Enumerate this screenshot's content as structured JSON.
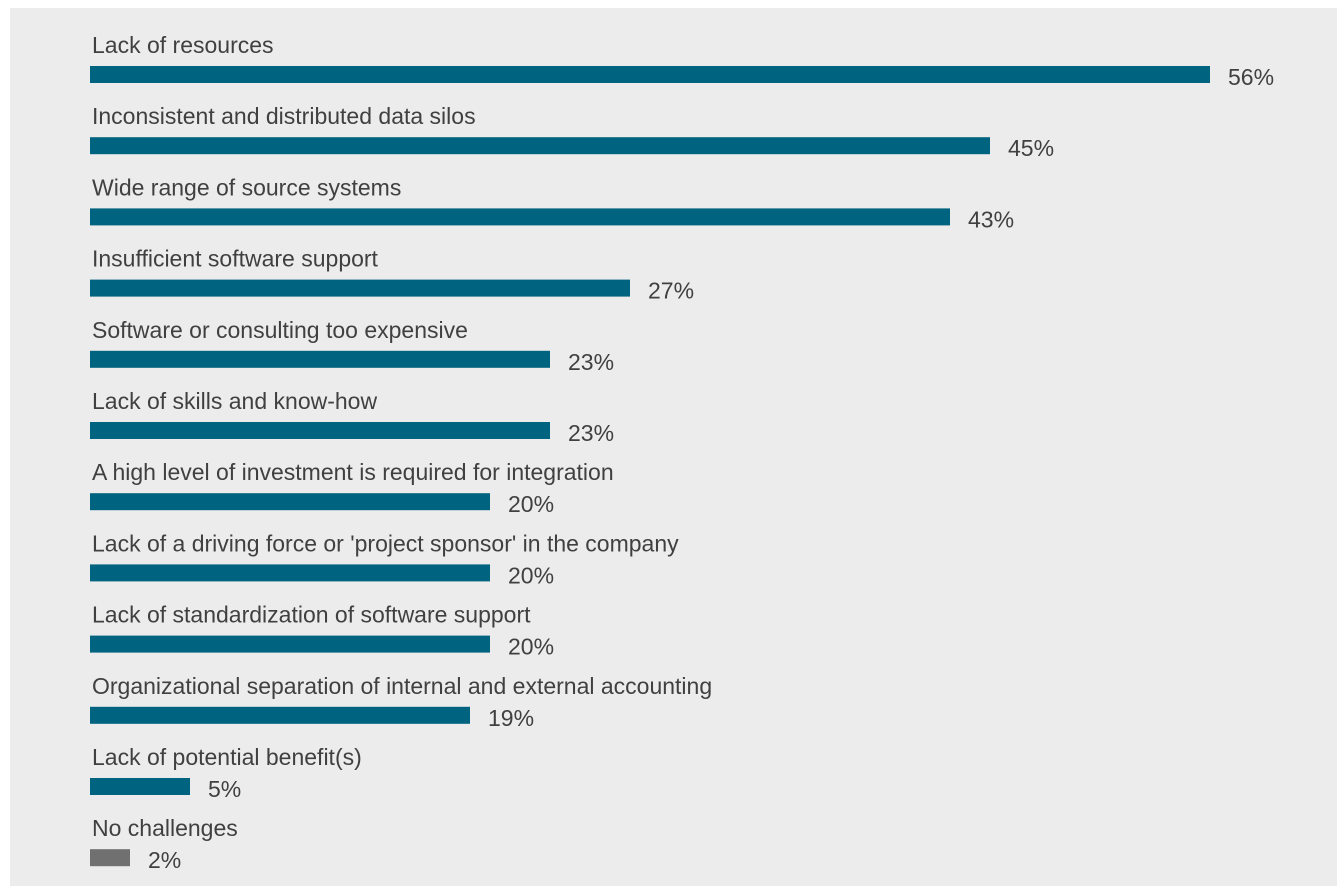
{
  "chart_data": {
    "type": "bar",
    "orientation": "horizontal",
    "value_suffix": "%",
    "categories": [
      "Lack of resources",
      "Inconsistent and distributed data silos",
      "Wide range of source systems",
      "Insufficient software support",
      "Software or consulting too expensive",
      "Lack of skills and know-how",
      "A high level of investment is required for integration",
      "Lack of a driving force or 'project sponsor' in the company",
      "Lack of standardization of software support",
      "Organizational separation of internal and external accounting",
      "Lack of potential benefit(s)",
      "No challenges"
    ],
    "values": [
      56,
      45,
      43,
      27,
      23,
      23,
      20,
      20,
      20,
      19,
      5,
      2
    ],
    "value_labels": [
      "56%",
      "45%",
      "43%",
      "27%",
      "23%",
      "23%",
      "20%",
      "20%",
      "20%",
      "19%",
      "5%",
      "2%"
    ],
    "colors": [
      "#00637f",
      "#00637f",
      "#00637f",
      "#00637f",
      "#00637f",
      "#00637f",
      "#00637f",
      "#00637f",
      "#00637f",
      "#00637f",
      "#00637f",
      "#707070"
    ],
    "background_color": "#ececec",
    "label_color": "#404040",
    "xlim": [
      0,
      56
    ],
    "grid": false,
    "legend": "none"
  }
}
